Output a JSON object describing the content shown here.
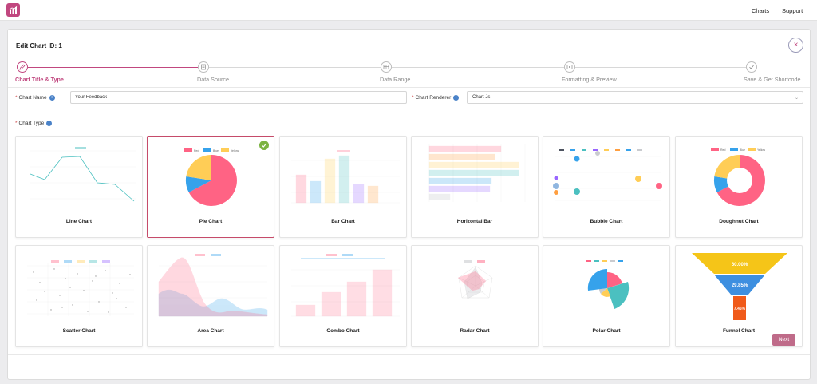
{
  "topnav": {
    "links": [
      "Charts",
      "Support"
    ]
  },
  "page": {
    "title": "Edit Chart ID: 1"
  },
  "steps": [
    {
      "label": "Chart Title & Type",
      "active": true
    },
    {
      "label": "Data Source",
      "active": false
    },
    {
      "label": "Data Range",
      "active": false
    },
    {
      "label": "Formatting & Preview",
      "active": false
    },
    {
      "label": "Save & Get Shortcode",
      "active": false
    }
  ],
  "form": {
    "chart_name_label": "Chart Name",
    "chart_name_value": "Your Feedback",
    "renderer_label": "Chart Renderer",
    "renderer_value": "Chart Js",
    "chart_type_label": "Chart Type",
    "required_mark": "*",
    "info_mark": "i"
  },
  "chart_types": [
    {
      "name": "Line Chart",
      "kind": "line",
      "selected": false
    },
    {
      "name": "Pie Chart",
      "kind": "pie",
      "selected": true
    },
    {
      "name": "Bar Chart",
      "kind": "bar",
      "selected": false
    },
    {
      "name": "Horizontal Bar",
      "kind": "hbar",
      "selected": false
    },
    {
      "name": "Bubble Chart",
      "kind": "bubble",
      "selected": false
    },
    {
      "name": "Doughnut Chart",
      "kind": "doughnut",
      "selected": false
    },
    {
      "name": "Scatter Chart",
      "kind": "scatter",
      "selected": false
    },
    {
      "name": "Area Chart",
      "kind": "area",
      "selected": false
    },
    {
      "name": "Combo Chart",
      "kind": "combo",
      "selected": false
    },
    {
      "name": "Radar Chart",
      "kind": "radar",
      "selected": false
    },
    {
      "name": "Polar Chart",
      "kind": "polar",
      "selected": false
    },
    {
      "name": "Funnel Chart",
      "kind": "funnel",
      "selected": false
    }
  ],
  "thumb_text": {
    "funnel": [
      "60.00%",
      "29.85%",
      "7.46%"
    ],
    "pie_legend": [
      "Red",
      "Blue",
      "Yellow"
    ],
    "doughnut_legend": [
      "Red",
      "Blue",
      "Yellow"
    ]
  },
  "colors": {
    "accent": "#c1477f",
    "pink": "#ff6384",
    "blue": "#36a2eb",
    "yellow": "#ffcd56",
    "teal": "#4bc0c0",
    "purple": "#9966ff",
    "orange": "#ff9f40",
    "funnel_yellow": "#f5c518",
    "funnel_blue": "#3d8fe0",
    "funnel_orange": "#f05a1a"
  },
  "actions": {
    "next_label": "Next",
    "close_glyph": "×"
  }
}
